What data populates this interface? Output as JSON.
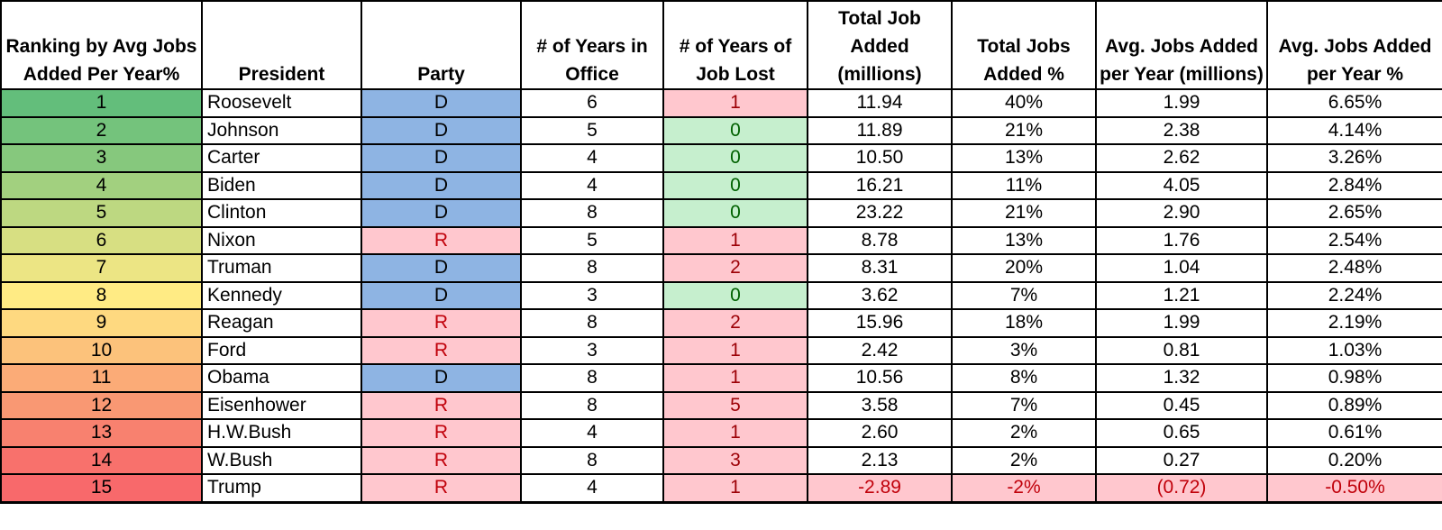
{
  "columns": [
    "Ranking by Avg Jobs Added Per Year%",
    "President",
    "Party",
    "# of Years in Office",
    "# of Years of Job Lost",
    "Total Job Added (millions)",
    "Total Jobs Added %",
    "Avg. Jobs Added per Year (millions)",
    "Avg. Jobs Added per Year %"
  ],
  "colors": {
    "party_D": "#8eb4e3",
    "party_R": "#ffc7ce",
    "lost_zero_bg": "#c6efce",
    "lost_zero_text": "#006100",
    "lost_nonzero_bg": "#ffc7ce",
    "lost_nonzero_text": "#9c0006",
    "negative_bg": "#ffc7ce",
    "negative_text": "#c0000a",
    "rank_scale": [
      "#63be7b",
      "#ffeb84",
      "#f8696b"
    ]
  },
  "rows": [
    {
      "rank": "1",
      "president": "Roosevelt",
      "party": "D",
      "years": "6",
      "lost": "1",
      "total": "11.94",
      "total_pct": "40%",
      "avg": "1.99",
      "avg_pct": "6.65%",
      "rank_color": "#63be7b"
    },
    {
      "rank": "2",
      "president": "Johnson",
      "party": "D",
      "years": "5",
      "lost": "0",
      "total": "11.89",
      "total_pct": "21%",
      "avg": "2.38",
      "avg_pct": "4.14%",
      "rank_color": "#74c37c"
    },
    {
      "rank": "3",
      "president": "Carter",
      "party": "D",
      "years": "4",
      "lost": "0",
      "total": "10.50",
      "total_pct": "13%",
      "avg": "2.62",
      "avg_pct": "3.26%",
      "rank_color": "#86c87d"
    },
    {
      "rank": "4",
      "president": "Biden",
      "party": "D",
      "years": "4",
      "lost": "0",
      "total": "16.21",
      "total_pct": "11%",
      "avg": "4.05",
      "avg_pct": "2.84%",
      "rank_color": "#a2d07f"
    },
    {
      "rank": "5",
      "president": "Clinton",
      "party": "D",
      "years": "8",
      "lost": "0",
      "total": "23.22",
      "total_pct": "21%",
      "avg": "2.90",
      "avg_pct": "2.65%",
      "rank_color": "#bdd881"
    },
    {
      "rank": "6",
      "president": "Nixon",
      "party": "R",
      "years": "5",
      "lost": "1",
      "total": "8.78",
      "total_pct": "13%",
      "avg": "1.76",
      "avg_pct": "2.54%",
      "rank_color": "#d7df82"
    },
    {
      "rank": "7",
      "president": "Truman",
      "party": "D",
      "years": "8",
      "lost": "2",
      "total": "8.31",
      "total_pct": "20%",
      "avg": "1.04",
      "avg_pct": "2.48%",
      "rank_color": "#ece584"
    },
    {
      "rank": "8",
      "president": "Kennedy",
      "party": "D",
      "years": "3",
      "lost": "0",
      "total": "3.62",
      "total_pct": "7%",
      "avg": "1.21",
      "avg_pct": "2.24%",
      "rank_color": "#ffeb84"
    },
    {
      "rank": "9",
      "president": "Reagan",
      "party": "R",
      "years": "8",
      "lost": "2",
      "total": "15.96",
      "total_pct": "18%",
      "avg": "1.99",
      "avg_pct": "2.19%",
      "rank_color": "#fed980"
    },
    {
      "rank": "10",
      "president": "Ford",
      "party": "R",
      "years": "3",
      "lost": "1",
      "total": "2.42",
      "total_pct": "3%",
      "avg": "0.81",
      "avg_pct": "1.03%",
      "rank_color": "#fcc27b"
    },
    {
      "rank": "11",
      "president": "Obama",
      "party": "D",
      "years": "8",
      "lost": "1",
      "total": "10.56",
      "total_pct": "8%",
      "avg": "1.32",
      "avg_pct": "0.98%",
      "rank_color": "#fbab77"
    },
    {
      "rank": "12",
      "president": "Eisenhower",
      "party": "R",
      "years": "8",
      "lost": "5",
      "total": "3.58",
      "total_pct": "7%",
      "avg": "0.45",
      "avg_pct": "0.89%",
      "rank_color": "#f99873"
    },
    {
      "rank": "13",
      "president": "H.W.Bush",
      "party": "R",
      "years": "4",
      "lost": "1",
      "total": "2.60",
      "total_pct": "2%",
      "avg": "0.65",
      "avg_pct": "0.61%",
      "rank_color": "#f8816f"
    },
    {
      "rank": "14",
      "president": "W.Bush",
      "party": "R",
      "years": "8",
      "lost": "3",
      "total": "2.13",
      "total_pct": "2%",
      "avg": "0.27",
      "avg_pct": "0.20%",
      "rank_color": "#f8716c"
    },
    {
      "rank": "15",
      "president": "Trump",
      "party": "R",
      "years": "4",
      "lost": "1",
      "total": "-2.89",
      "total_pct": "-2%",
      "avg": "(0.72)",
      "avg_pct": "-0.50%",
      "rank_color": "#f8696b"
    }
  ]
}
